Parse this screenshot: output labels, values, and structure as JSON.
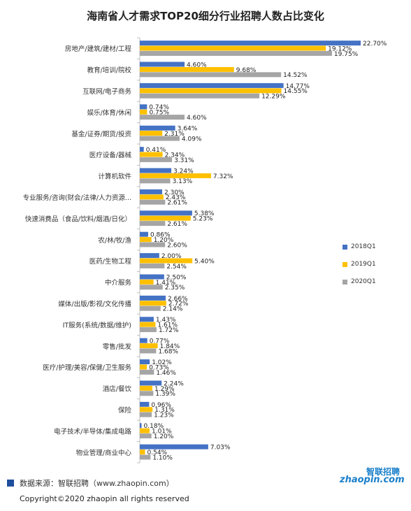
{
  "chart_data": {
    "type": "bar",
    "orientation": "horizontal",
    "title": "海南省人才需求TOP20细分行业招聘人数占比变化",
    "categories": [
      "房地产/建筑/建材/工程",
      "教育/培训/院校",
      "互联网/电子商务",
      "娱乐/体育/休闲",
      "基金/证券/期货/投资",
      "医疗设备/器械",
      "计算机软件",
      "专业服务/咨询(财会/法律/人力资源...",
      "快速消费品（食品/饮料/烟酒/日化）",
      "农/林/牧/渔",
      "医药/生物工程",
      "中介服务",
      "媒体/出版/影视/文化传播",
      "IT服务(系统/数据/维护)",
      "零售/批发",
      "医疗/护理/美容/保健/卫生服务",
      "酒店/餐饮",
      "保险",
      "电子技术/半导体/集成电路",
      "物业管理/商业中心"
    ],
    "series": [
      {
        "name": "2018Q1",
        "color": "#4472c4",
        "values": [
          22.7,
          4.6,
          14.77,
          0.74,
          3.64,
          0.41,
          3.24,
          2.3,
          5.38,
          0.86,
          2.0,
          2.5,
          2.66,
          1.43,
          0.77,
          1.02,
          2.24,
          0.96,
          0.18,
          7.03
        ],
        "labels": [
          "22.70%",
          "4.60%",
          "14.77%",
          "0.74%",
          "3.64%",
          "0.41%",
          "3.24%",
          "2.30%",
          "5.38%",
          "0.86%",
          "2.00%",
          "2.50%",
          "2.66%",
          "1.43%",
          "0.77%",
          "1.02%",
          "2.24%",
          "0.96%",
          "0.18%",
          "7.03%"
        ]
      },
      {
        "name": "2019Q1",
        "color": "#ffc000",
        "values": [
          19.12,
          9.68,
          14.55,
          0.75,
          2.31,
          2.34,
          7.32,
          2.43,
          5.23,
          1.2,
          5.4,
          1.41,
          2.72,
          1.61,
          1.84,
          0.73,
          1.29,
          1.31,
          1.01,
          0.54
        ],
        "labels": [
          "19.12%",
          "9.68%",
          "14.55%",
          "0.75%",
          "2.31%",
          "2.34%",
          "7.32%",
          "2.43%",
          "5.23%",
          "1.20%",
          "5.40%",
          "1.41%",
          "2.72%",
          "1.61%",
          "1.84%",
          "0.73%",
          "1.29%",
          "1.31%",
          "1.01%",
          "0.54%"
        ]
      },
      {
        "name": "2020Q1",
        "color": "#a5a5a5",
        "values": [
          19.75,
          14.52,
          12.29,
          4.6,
          4.09,
          3.31,
          3.13,
          2.61,
          2.61,
          2.6,
          2.54,
          2.35,
          2.14,
          1.72,
          1.68,
          1.46,
          1.39,
          1.23,
          1.2,
          1.1
        ],
        "labels": [
          "19.75%",
          "14.52%",
          "12.29%",
          "4.60%",
          "4.09%",
          "3.31%",
          "3.13%",
          "2.61%",
          "2.61%",
          "2.60%",
          "2.54%",
          "2.35%",
          "2.14%",
          "1.72%",
          "1.68%",
          "1.46%",
          "1.39%",
          "1.23%",
          "1.20%",
          "1.10%"
        ]
      }
    ],
    "xlim": [
      0,
      25
    ],
    "legend_position": "right"
  },
  "footer": {
    "source": "数据来源：智联招聘（www.zhaopin.com）",
    "copyright": "Copyright©2020 zhaopin all rights reserved"
  },
  "logo": {
    "text_cn": "智联招聘",
    "text_en": "zhaopin.com"
  }
}
